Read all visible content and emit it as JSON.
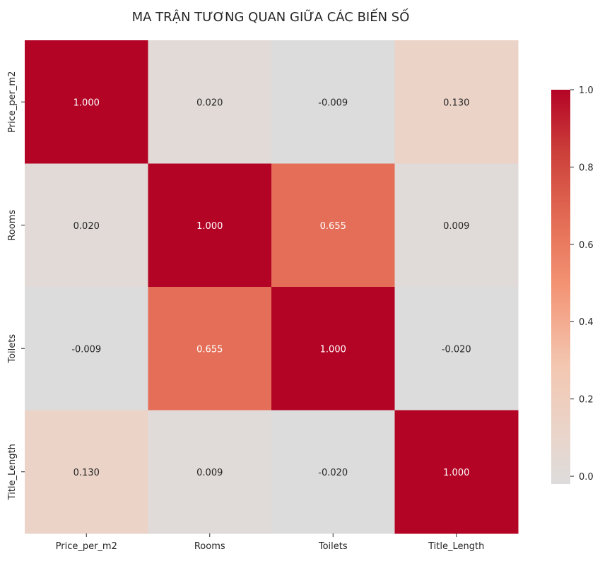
{
  "chart_data": {
    "type": "heatmap",
    "title": "MA TRẬN TƯƠNG QUAN GIỮA CÁC BIẾN SỐ",
    "xlabel": "",
    "ylabel": "",
    "x_categories": [
      "Price_per_m2",
      "Rooms",
      "Toilets",
      "Title_Length"
    ],
    "y_categories": [
      "Price_per_m2",
      "Rooms",
      "Toilets",
      "Title_Length"
    ],
    "values": [
      [
        1.0,
        0.02,
        -0.009,
        0.13
      ],
      [
        0.02,
        1.0,
        0.655,
        0.009
      ],
      [
        -0.009,
        0.655,
        1.0,
        -0.02
      ],
      [
        0.13,
        0.009,
        -0.02,
        1.0
      ]
    ],
    "value_labels": [
      [
        "1.000",
        "0.020",
        "-0.009",
        "0.130"
      ],
      [
        "0.020",
        "1.000",
        "0.655",
        "0.009"
      ],
      [
        "-0.009",
        "0.655",
        "1.000",
        "-0.020"
      ],
      [
        "0.130",
        "0.009",
        "-0.020",
        "1.000"
      ]
    ],
    "colorbar": {
      "range": [
        -0.02,
        1.0
      ],
      "ticks": [
        0.0,
        0.2,
        0.4,
        0.6,
        0.8,
        1.0
      ],
      "tick_labels": [
        "0.0",
        "0.2",
        "0.4",
        "0.6",
        "0.8",
        "1.0"
      ],
      "colormap": "coolwarm",
      "center": 0
    },
    "colors": {
      "low": "#dddcdc",
      "high": "#b40426",
      "text_light": "#ffffff",
      "text_dark": "#262626"
    }
  }
}
